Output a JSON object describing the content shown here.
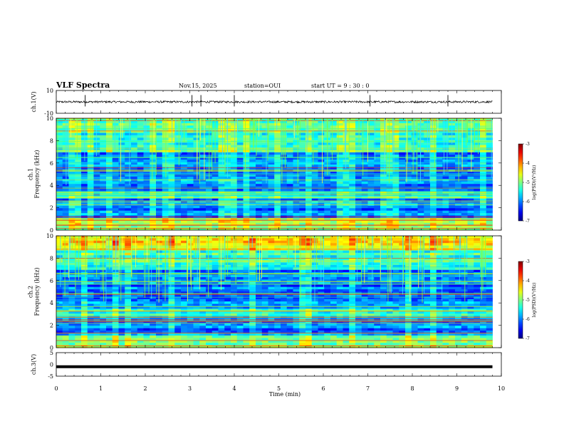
{
  "header": {
    "title": "VLF Spectra",
    "date": "Nov.15, 2025",
    "station": "station=OUI",
    "start": "start  UT =   9  : 30 : 0"
  },
  "chart_data": [
    {
      "type": "line",
      "name": "ch1-waveform",
      "ylabel": "ch.1(V)",
      "ylim": [
        -10,
        10
      ],
      "tick_labels": [
        "10",
        "-10"
      ],
      "xlim": [
        0,
        10
      ],
      "baseline": 0,
      "spike_times_min": [
        0.65,
        3.05,
        3.25,
        4.0,
        7.05,
        8.8
      ]
    },
    {
      "type": "heatmap",
      "name": "ch1-spectrogram",
      "ylabel": "ch.1\nFrequency (kHz)",
      "ylim": [
        0,
        10
      ],
      "y_ticks": [
        "0",
        "2",
        "4",
        "6",
        "8",
        "10"
      ],
      "xlim": [
        0,
        9.8
      ],
      "colorbar": {
        "label": "log(PSD)(V²/Hz)",
        "range": [
          -7,
          -3
        ],
        "ticks": [
          "-3",
          "-4",
          "-5",
          "-6",
          "-7"
        ]
      }
    },
    {
      "type": "heatmap",
      "name": "ch2-spectrogram",
      "ylabel": "ch.2\nFrequency (kHz)",
      "ylim": [
        0,
        10
      ],
      "y_ticks": [
        "0",
        "2",
        "4",
        "6",
        "8",
        "10"
      ],
      "xlim": [
        0,
        9.8
      ],
      "colorbar": {
        "label": "log(PSD)(V²/Hz)",
        "range": [
          -7,
          -3
        ],
        "ticks": [
          "-3",
          "-4",
          "-5",
          "-6",
          "-7"
        ]
      }
    },
    {
      "type": "line",
      "name": "ch3-waveform",
      "ylabel": "ch.3(V)",
      "ylim": [
        -5,
        5
      ],
      "tick_labels": [
        "5",
        "0",
        "-5"
      ],
      "value": -1,
      "xlim": [
        0,
        10
      ]
    }
  ],
  "xaxis": {
    "label": "Time  (min)",
    "range": [
      0,
      10
    ],
    "ticks": [
      "0",
      "1",
      "2",
      "3",
      "4",
      "5",
      "6",
      "7",
      "8",
      "9",
      "10"
    ]
  }
}
